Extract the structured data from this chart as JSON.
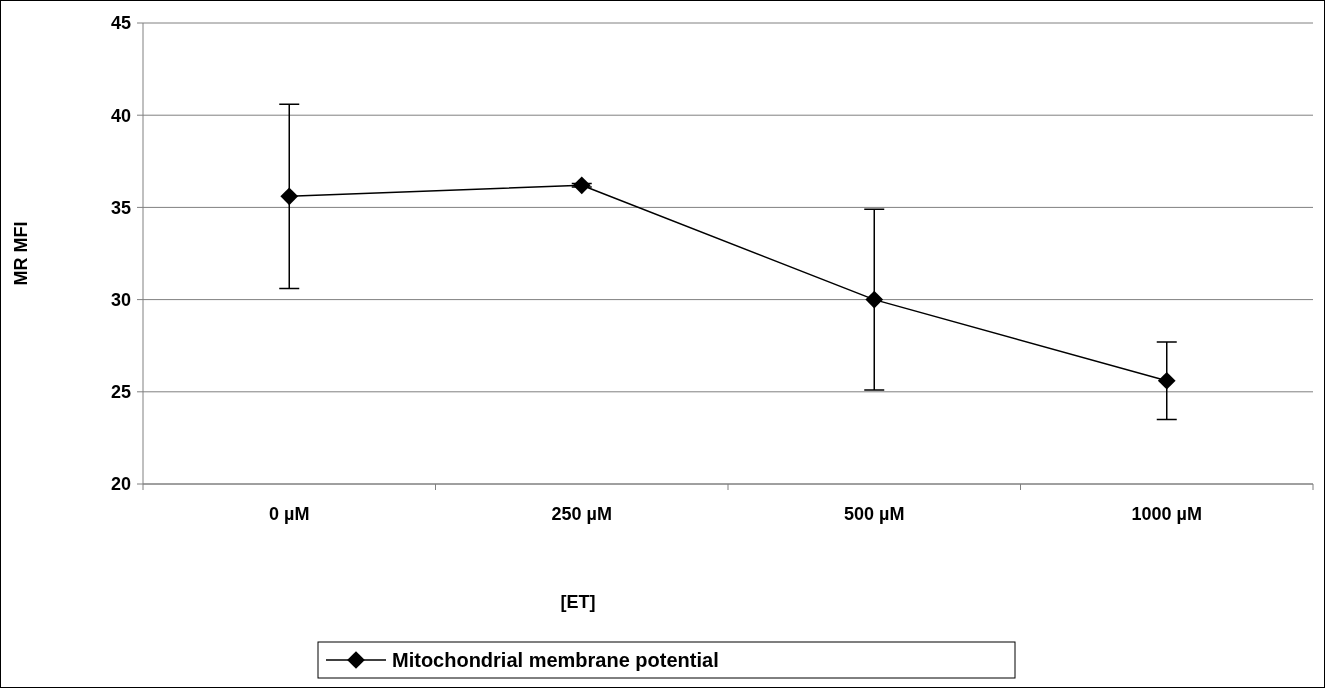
{
  "chart_data": {
    "type": "line",
    "xlabel": "[ET]",
    "ylabel": "MR MFI",
    "categories": [
      "0 µM",
      "250 µM",
      "500 µM",
      "1000 µM"
    ],
    "series": [
      {
        "name": "Mitochondrial membrane potential",
        "color": "#000000",
        "values": [
          35.6,
          36.2,
          30.0,
          25.6
        ],
        "errors": [
          5.0,
          0.1,
          4.9,
          2.1
        ]
      }
    ],
    "ylim": [
      20,
      45
    ],
    "yticks": [
      20,
      25,
      30,
      35,
      40,
      45
    ],
    "grid": "y",
    "legend": "bottom",
    "marker": "diamond",
    "line_style": "solid"
  }
}
